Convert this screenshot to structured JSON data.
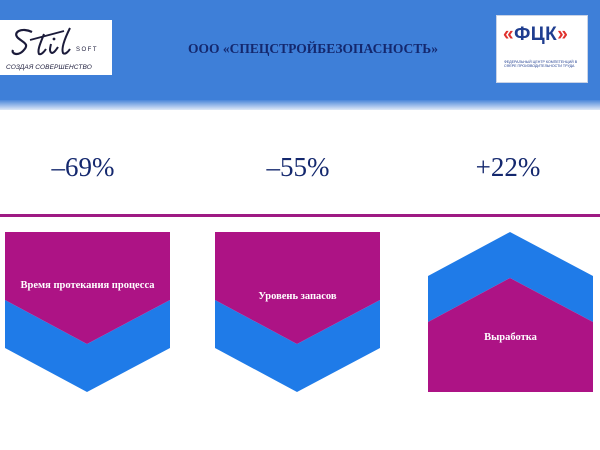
{
  "header": {
    "logo_script": "Stil",
    "logo_soft": "SOFT",
    "logo_tagline": "СОЗДАЯ СОВЕРШЕНСТВО",
    "company_name": "ООО «СПЕЦСТРОЙБЕЗОПАСНОСТЬ»",
    "partner_logo": {
      "left_bracket": "«",
      "letters": "ФЦК",
      "right_bracket": "»",
      "subtitle": "ФЕДЕРАЛЬНЫЙ ЦЕНТР КОМПЕТЕНЦИЙ В СФЕРЕ ПРОИЗВОДИТЕЛЬНОСТИ ТРУДА"
    }
  },
  "metrics": [
    {
      "value": "–69%",
      "label": "Время протекания процесса",
      "direction": "down"
    },
    {
      "value": "–55%",
      "label": "Уровень запасов",
      "direction": "down"
    },
    {
      "value": "+22%",
      "label": "Выработка",
      "direction": "up"
    }
  ],
  "colors": {
    "header_blue": "#3e7fd8",
    "navy": "#14286e",
    "magenta": "#ad1385",
    "shape_blue": "#1f7be8",
    "divider": "#9e1a83"
  }
}
